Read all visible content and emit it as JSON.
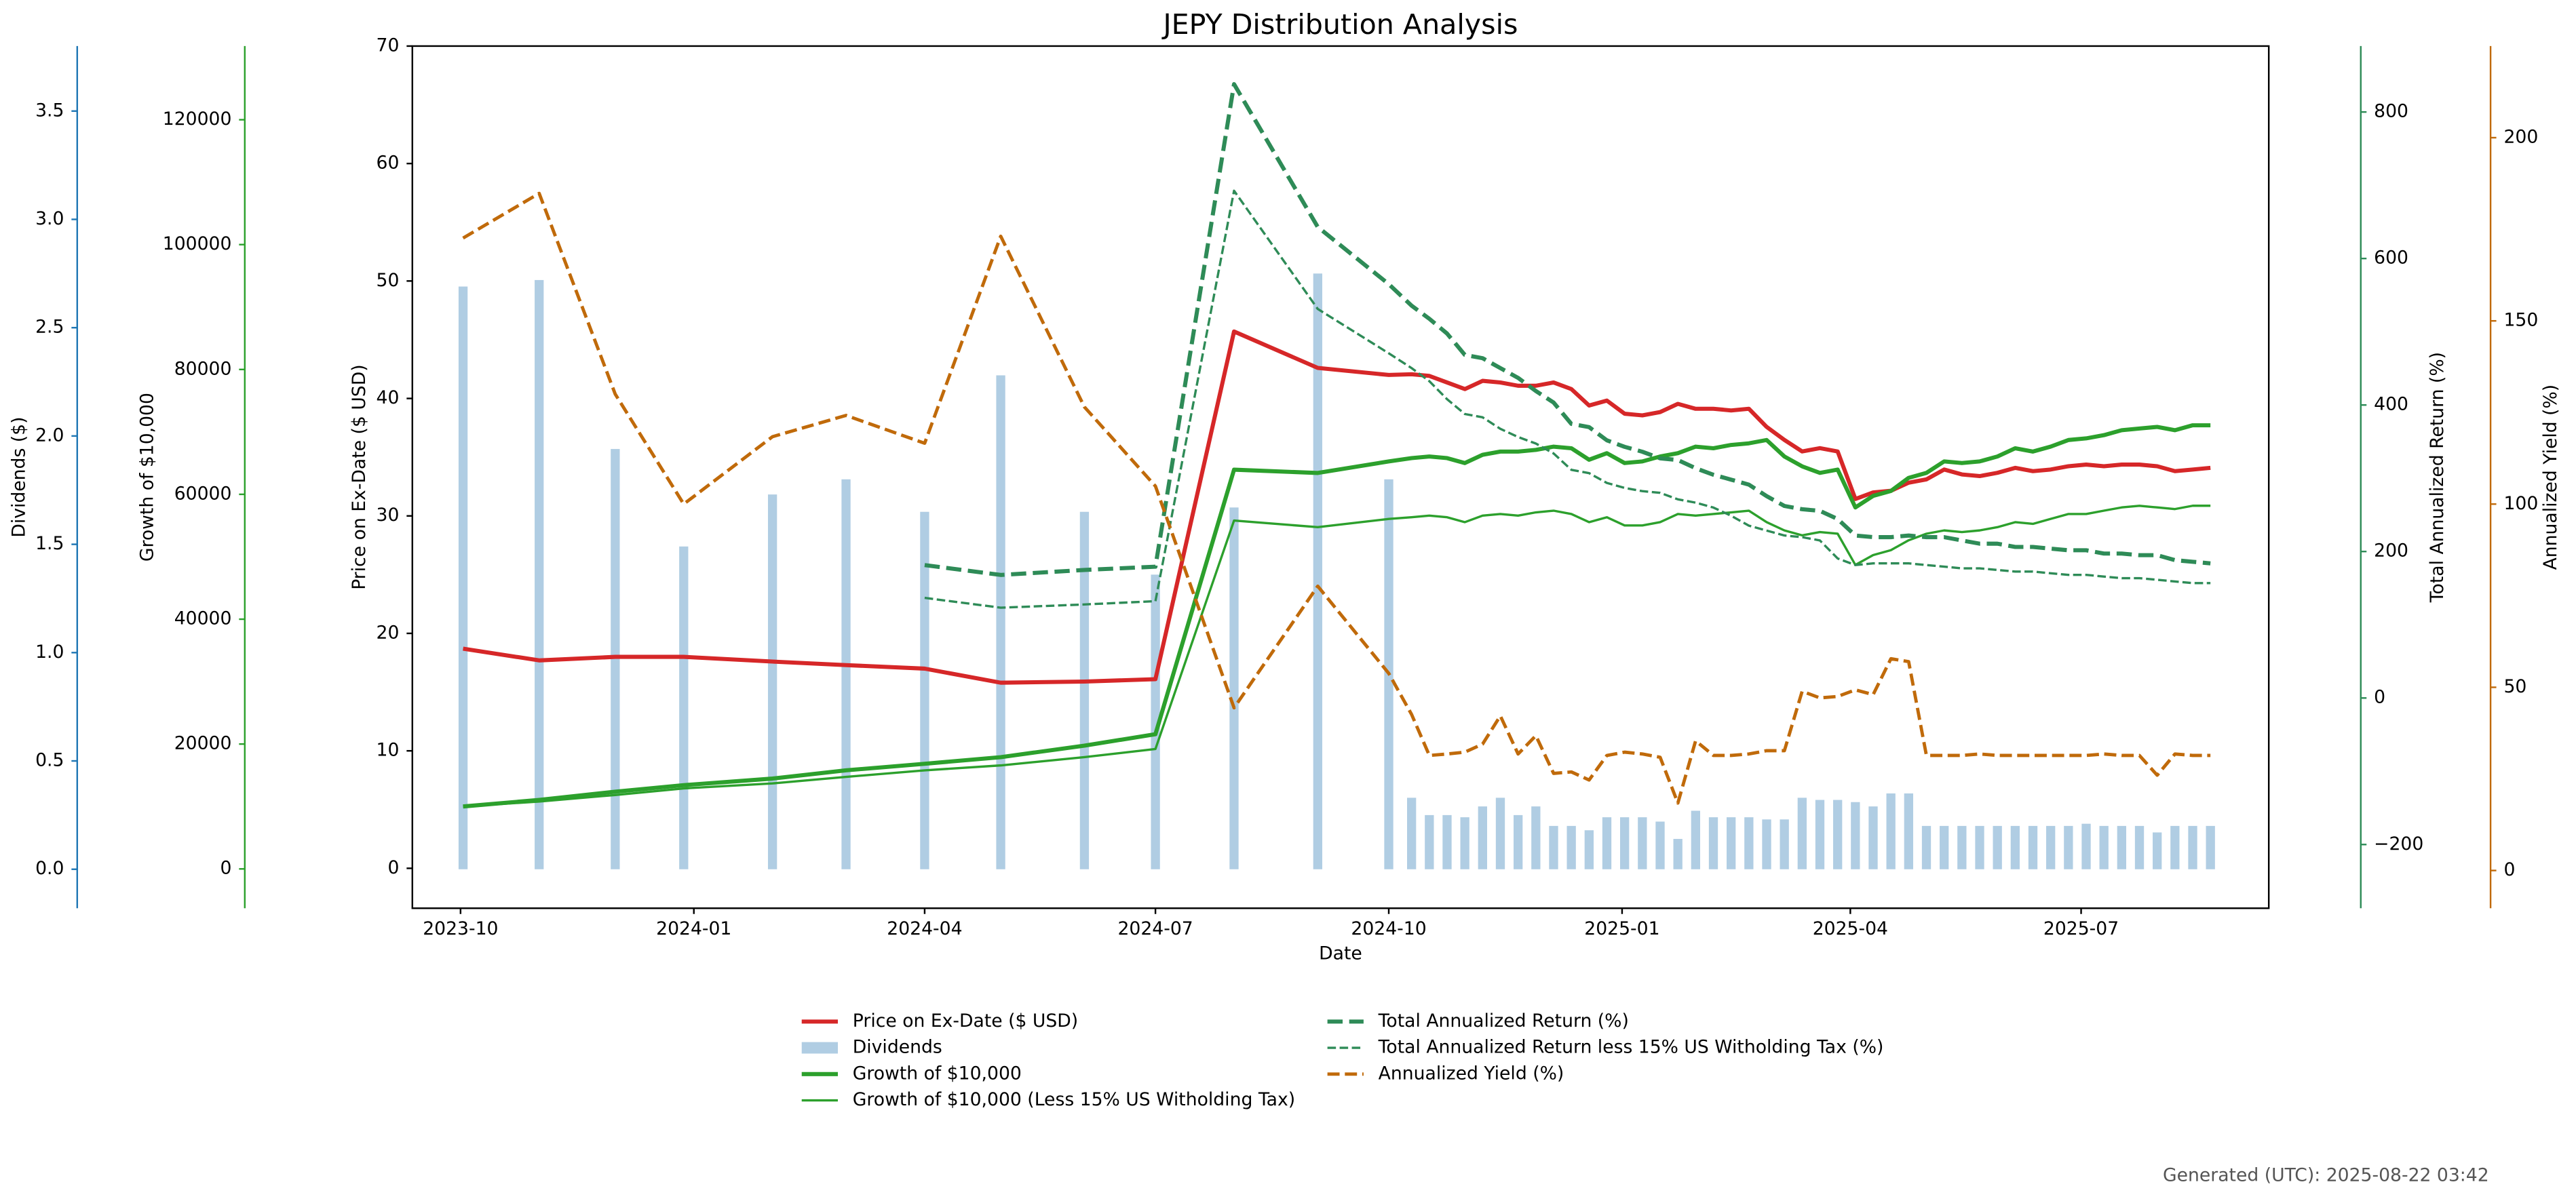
{
  "chart_data": {
    "type": "combo",
    "title": "JEPY Distribution Analysis",
    "xlabel": "Date",
    "footnote": "Generated (UTC): 2025-08-22 03:42",
    "x": [
      "2023-10-02",
      "2023-11-01",
      "2023-12-01",
      "2023-12-28",
      "2024-02-01",
      "2024-03-01",
      "2024-04-01",
      "2024-05-01",
      "2024-06-03",
      "2024-07-01",
      "2024-08-01",
      "2024-09-03",
      "2024-10-01",
      "2024-10-10",
      "2024-10-17",
      "2024-10-24",
      "2024-10-31",
      "2024-11-07",
      "2024-11-14",
      "2024-11-21",
      "2024-11-28",
      "2024-12-05",
      "2024-12-12",
      "2024-12-19",
      "2024-12-26",
      "2025-01-02",
      "2025-01-09",
      "2025-01-16",
      "2025-01-23",
      "2025-01-30",
      "2025-02-06",
      "2025-02-13",
      "2025-02-20",
      "2025-02-27",
      "2025-03-06",
      "2025-03-13",
      "2025-03-20",
      "2025-03-27",
      "2025-04-03",
      "2025-04-10",
      "2025-04-17",
      "2025-04-24",
      "2025-05-01",
      "2025-05-08",
      "2025-05-15",
      "2025-05-22",
      "2025-05-29",
      "2025-06-05",
      "2025-06-12",
      "2025-06-19",
      "2025-06-26",
      "2025-07-03",
      "2025-07-10",
      "2025-07-17",
      "2025-07-24",
      "2025-07-31",
      "2025-08-07",
      "2025-08-14",
      "2025-08-21"
    ],
    "xlim": [
      "2023-09-12",
      "2025-09-13"
    ],
    "xticks": [
      {
        "value": "2023-10-01",
        "label": "2023-10"
      },
      {
        "value": "2024-01-01",
        "label": "2024-01"
      },
      {
        "value": "2024-04-01",
        "label": "2024-04"
      },
      {
        "value": "2024-07-01",
        "label": "2024-07"
      },
      {
        "value": "2024-10-01",
        "label": "2024-10"
      },
      {
        "value": "2025-01-01",
        "label": "2025-01"
      },
      {
        "value": "2025-04-01",
        "label": "2025-04"
      },
      {
        "value": "2025-07-01",
        "label": "2025-07"
      }
    ],
    "ylabel": "Price on Ex-Date ($ USD)",
    "ylim": [
      -3.4,
      70
    ],
    "yticks": [
      0,
      10,
      20,
      30,
      40,
      50,
      60,
      70
    ],
    "ycolor": "#d62728",
    "y2label": "Dividends ($)",
    "y2lim": [
      -0.18,
      3.8
    ],
    "y2ticks": [
      {
        "value": 0,
        "label": "0.0"
      },
      0.5,
      {
        "value": 1,
        "label": "1.0"
      },
      1.5,
      {
        "value": 2,
        "label": "2.0"
      },
      2.5,
      {
        "value": 3,
        "label": "3.0"
      },
      3.5
    ],
    "y2color": "#1f77b4",
    "y3label": "Growth of $10,000",
    "y3lim": [
      -6300,
      131800
    ],
    "y3ticks": [
      0,
      20000,
      40000,
      60000,
      80000,
      100000,
      120000
    ],
    "y3color": "#2ca02c",
    "y4label": "Total Annualized Return (%)",
    "y4lim": [
      -287,
      890
    ],
    "y4ticks": [
      {
        "value": -200,
        "label": "−200"
      },
      0,
      200,
      400,
      600,
      800
    ],
    "y4color": "#2e8b57",
    "y5label": "Annualized Yield (%)",
    "y5lim": [
      -10.3,
      225
    ],
    "y5ticks": [
      0,
      50,
      100,
      150,
      200
    ],
    "y5color": "#c06a0a",
    "series": [
      {
        "name": "Price on Ex-Date ($ USD)",
        "type": "line",
        "axis": "y",
        "color": "#d62728",
        "linestyle": "solid",
        "linewidth": 2.5,
        "values": [
          18.7,
          17.7,
          18.0,
          18.0,
          17.6,
          17.3,
          17.0,
          15.8,
          15.9,
          16.1,
          45.7,
          42.6,
          42.0,
          42.06,
          41.92,
          41.36,
          40.8,
          41.5,
          41.36,
          41.08,
          41.08,
          41.36,
          40.8,
          39.4,
          39.82,
          38.7,
          38.56,
          38.84,
          39.54,
          39.12,
          39.12,
          38.98,
          39.12,
          37.58,
          36.47,
          35.49,
          35.77,
          35.49,
          31.44,
          32.0,
          32.14,
          32.83,
          33.11,
          33.95,
          33.53,
          33.39,
          33.67,
          34.09,
          33.81,
          33.95,
          34.23,
          34.37,
          34.23,
          34.37,
          34.37,
          34.23,
          33.81,
          33.95,
          34.09
        ]
      },
      {
        "name": "Dividends",
        "type": "bar",
        "axis": "y2",
        "color": "#b0cde3",
        "values": [
          2.69,
          2.72,
          1.94,
          1.49,
          1.73,
          1.8,
          1.65,
          2.28,
          1.65,
          1.36,
          1.67,
          2.75,
          1.8,
          0.33,
          0.25,
          0.25,
          0.24,
          0.29,
          0.33,
          0.25,
          0.29,
          0.2,
          0.2,
          0.18,
          0.24,
          0.24,
          0.24,
          0.22,
          0.14,
          0.27,
          0.24,
          0.24,
          0.24,
          0.23,
          0.23,
          0.33,
          0.32,
          0.32,
          0.31,
          0.29,
          0.35,
          0.35,
          0.2,
          0.2,
          0.2,
          0.2,
          0.2,
          0.2,
          0.2,
          0.2,
          0.2,
          0.21,
          0.2,
          0.2,
          0.2,
          0.17,
          0.2,
          0.2,
          0.2
        ]
      },
      {
        "name": "Growth of $10,000",
        "type": "line",
        "axis": "y3",
        "color": "#2ca02c",
        "linestyle": "solid",
        "linewidth": 2.5,
        "values": [
          10000,
          11050,
          12370,
          13420,
          14470,
          15790,
          16840,
          17900,
          19740,
          21580,
          63950,
          63420,
          65270,
          65800,
          66060,
          65800,
          65010,
          66330,
          66850,
          66850,
          67120,
          67640,
          67380,
          65540,
          66590,
          65010,
          65270,
          66060,
          66590,
          67640,
          67380,
          67910,
          68170,
          68700,
          66060,
          64480,
          63430,
          63960,
          57900,
          59750,
          60540,
          62640,
          63430,
          65270,
          65010,
          65270,
          66060,
          67380,
          66850,
          67640,
          68700,
          68960,
          69480,
          70270,
          70540,
          70800,
          70270,
          71060,
          71060
        ]
      },
      {
        "name": "Growth of $10,000 (Less 15% US Witholding Tax)",
        "type": "line",
        "axis": "y3",
        "color": "#2ca02c",
        "linestyle": "solid",
        "linewidth": 1.4,
        "values": [
          10000,
          10790,
          11840,
          12900,
          13690,
          14740,
          15790,
          16580,
          17900,
          19210,
          55800,
          54740,
          56060,
          56330,
          56590,
          56330,
          55540,
          56590,
          56850,
          56590,
          57110,
          57380,
          56850,
          55540,
          56330,
          55010,
          55010,
          55540,
          56850,
          56590,
          56850,
          57110,
          57380,
          55540,
          54220,
          53430,
          53960,
          53690,
          48690,
          50270,
          51060,
          52640,
          53690,
          54220,
          53960,
          54220,
          54740,
          55540,
          55270,
          56060,
          56850,
          56850,
          57380,
          57900,
          58170,
          57900,
          57640,
          58170,
          58170
        ]
      },
      {
        "name": "Total Annualized Return (%)",
        "type": "line",
        "axis": "y4",
        "color": "#2e8b57",
        "linestyle": "dashed",
        "linewidth": 2.5,
        "values": [
          null,
          null,
          null,
          null,
          null,
          null,
          181.5,
          168.0,
          174.8,
          179.3,
          838.0,
          643.0,
          565.0,
          535.6,
          517.7,
          497.5,
          468.4,
          463.9,
          450.4,
          437.0,
          419.1,
          403.4,
          374.2,
          369.8,
          351.8,
          342.9,
          336.2,
          327.2,
          324.9,
          313.7,
          304.8,
          298.1,
          291.3,
          275.6,
          262.2,
          257.7,
          255.5,
          244.3,
          221.8,
          219.6,
          219.6,
          221.8,
          219.6,
          219.6,
          215.1,
          210.7,
          210.7,
          206.2,
          206.2,
          203.9,
          201.7,
          201.7,
          197.2,
          197.2,
          195.0,
          195.0,
          188.2,
          186.0,
          183.8
        ]
      },
      {
        "name": "Total Annualized Return less 15% US Witholding Tax (%)",
        "type": "line",
        "axis": "y4",
        "color": "#2e8b57",
        "linestyle": "dashed",
        "linewidth": 1.4,
        "values": [
          null,
          null,
          null,
          null,
          null,
          null,
          136.7,
          123.3,
          127.7,
          132.2,
          692.5,
          531.1,
          470.6,
          450.4,
          432.5,
          407.9,
          387.7,
          383.2,
          367.5,
          356.3,
          347.4,
          333.9,
          311.5,
          307.0,
          293.6,
          286.8,
          282.4,
          280.1,
          271.2,
          266.7,
          260.0,
          248.8,
          235.3,
          228.6,
          221.9,
          219.6,
          215.1,
          190.5,
          181.5,
          183.8,
          183.8,
          183.8,
          181.5,
          179.3,
          177.0,
          177.0,
          174.8,
          172.6,
          172.6,
          170.3,
          168.1,
          168.1,
          165.8,
          163.6,
          163.6,
          161.4,
          159.1,
          156.9,
          156.9
        ]
      },
      {
        "name": "Annualized Yield (%)",
        "type": "line",
        "axis": "y5",
        "color": "#c06a0a",
        "linestyle": "dashed",
        "linewidth": 2,
        "values": [
          172.6,
          184.8,
          130.0,
          100.0,
          118.4,
          124.2,
          116.6,
          173.1,
          126.5,
          104.9,
          44.4,
          77.6,
          53.8,
          42.6,
          31.4,
          31.8,
          32.3,
          34.5,
          42.2,
          31.8,
          36.8,
          26.5,
          26.9,
          24.7,
          31.4,
          32.3,
          31.8,
          30.9,
          18.4,
          35.4,
          31.4,
          31.4,
          31.8,
          32.7,
          32.7,
          48.9,
          47.1,
          47.5,
          49.3,
          48.0,
          57.8,
          57.0,
          31.4,
          31.4,
          31.4,
          31.8,
          31.4,
          31.4,
          31.4,
          31.4,
          31.4,
          31.4,
          31.8,
          31.4,
          31.4,
          26.0,
          31.8,
          31.4,
          31.4
        ]
      }
    ]
  }
}
